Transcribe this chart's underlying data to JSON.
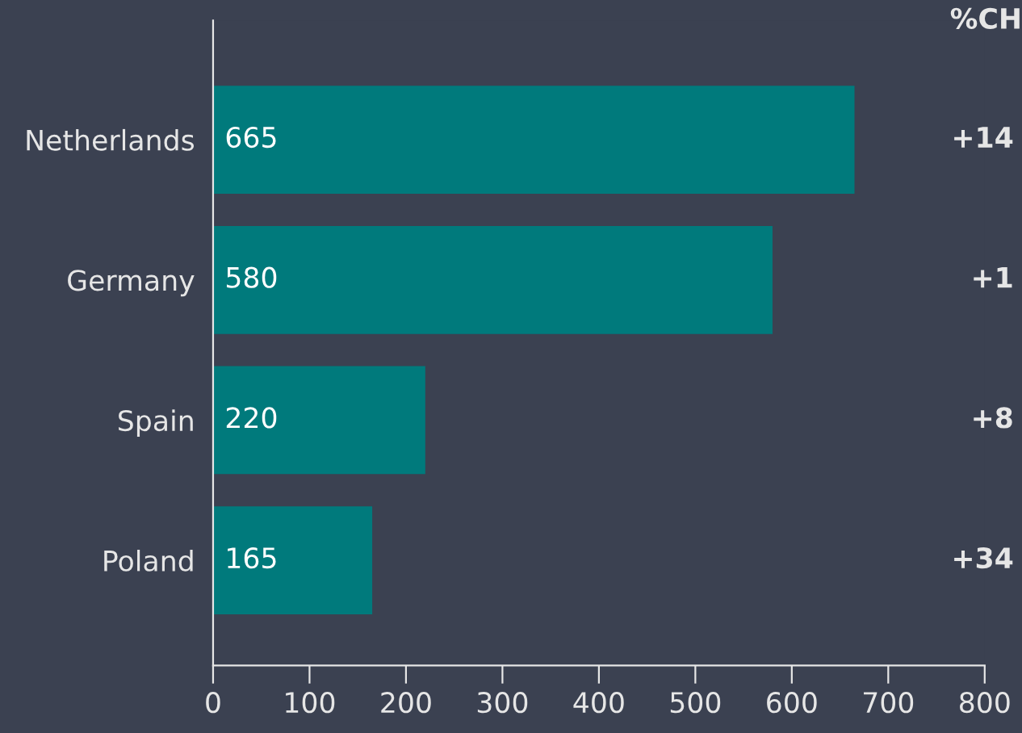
{
  "chart_data": {
    "type": "bar",
    "orientation": "horizontal",
    "categories": [
      "Netherlands",
      "Germany",
      "Spain",
      "Poland"
    ],
    "values": [
      665,
      580,
      220,
      165
    ],
    "color": "#007a7c",
    "xlim": [
      0,
      800
    ],
    "xticks": [
      0,
      100,
      200,
      300,
      400,
      500,
      600,
      700,
      800
    ],
    "grid": false,
    "data_labels": true,
    "annotations": [
      "%CH",
      "+14",
      "+1",
      "+8",
      "+34"
    ]
  }
}
